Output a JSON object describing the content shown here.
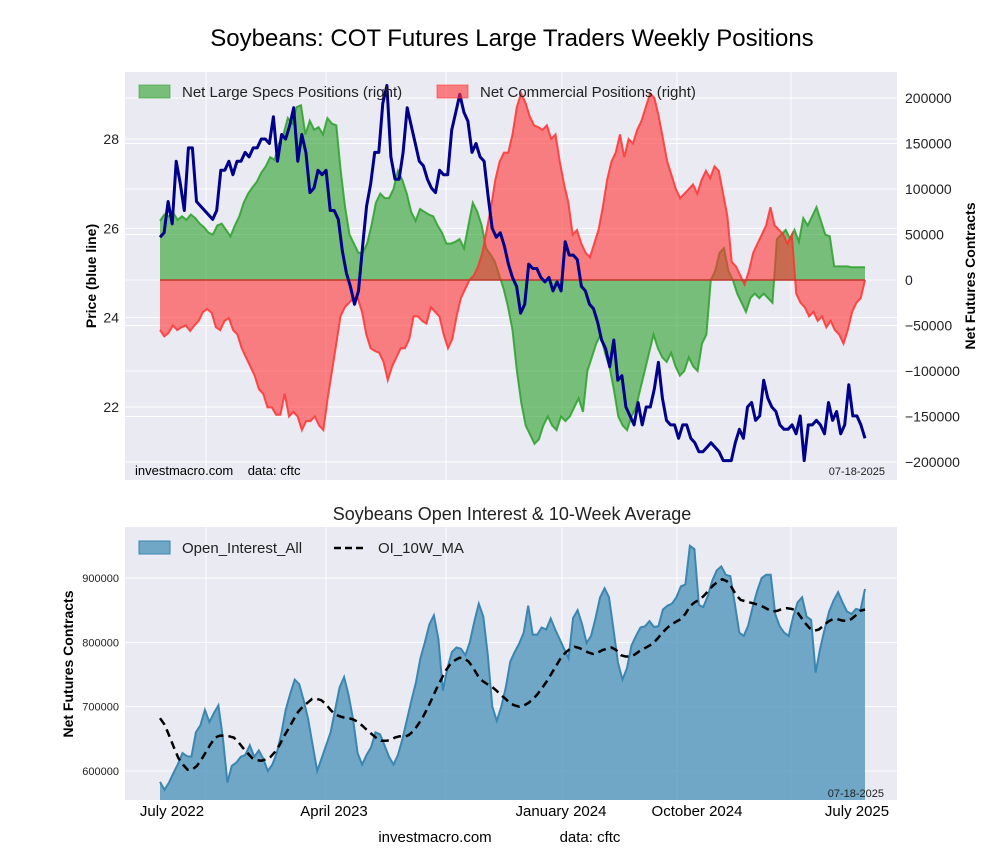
{
  "chart_data": [
    {
      "type": "area",
      "title": "Soybeans: COT Futures Large Traders Weekly Positions",
      "ylabel_left": "Price (blue line)",
      "ylabel_right": "Net Futures Contracts",
      "yticks_left": [
        "22",
        "24",
        "26",
        "28"
      ],
      "yticks_left_values": [
        22,
        24,
        26,
        28
      ],
      "yticks_right": [
        "200000",
        "150000",
        "100000",
        "50000",
        "0",
        "−50000",
        "−100000",
        "−150000",
        "−200000"
      ],
      "yticks_right_values": [
        200000,
        150000,
        100000,
        50000,
        0,
        -50000,
        -100000,
        -150000,
        -200000
      ],
      "ylim_left": [
        20.7,
        29.8
      ],
      "ylim_right": [
        -200000,
        200000
      ],
      "grid": true,
      "legend_position": "top-left",
      "legend": [
        "Net Large Specs Positions (right)",
        "Net Commercial Positions (right)"
      ],
      "watermark": "investmacro.com    data: cftc",
      "date_stamp": "07-18-2025",
      "colors": {
        "specs": "#2ca02c",
        "commercial": "#ff3333",
        "price": "#00008b",
        "background": "#eaeaf2"
      },
      "x_weeks": 157,
      "series": [
        {
          "name": "Net Large Specs Positions (right)",
          "values": [
            65000,
            72000,
            70000,
            74000,
            66000,
            70000,
            66000,
            72000,
            68000,
            62000,
            58000,
            52000,
            50000,
            60000,
            62000,
            55000,
            48000,
            60000,
            70000,
            85000,
            95000,
            102000,
            108000,
            118000,
            125000,
            135000,
            132000,
            150000,
            160000,
            178000,
            172000,
            190000,
            192000,
            160000,
            175000,
            165000,
            168000,
            160000,
            178000,
            172000,
            170000,
            120000,
            80000,
            50000,
            40000,
            30000,
            30000,
            40000,
            60000,
            85000,
            95000,
            90000,
            90000,
            100000,
            120000,
            110000,
            95000,
            75000,
            65000,
            78000,
            75000,
            72000,
            70000,
            60000,
            52000,
            40000,
            40000,
            42000,
            45000,
            35000,
            60000,
            85000,
            75000,
            60000,
            35000,
            28000,
            20000,
            5000,
            -10000,
            -30000,
            -55000,
            -100000,
            -135000,
            -160000,
            -170000,
            -180000,
            -175000,
            -160000,
            -150000,
            -160000,
            -165000,
            -150000,
            -155000,
            -150000,
            -140000,
            -130000,
            -145000,
            -100000,
            -85000,
            -70000,
            -60000,
            -80000,
            -95000,
            -120000,
            -150000,
            -160000,
            -165000,
            -150000,
            -140000,
            -120000,
            -100000,
            -80000,
            -60000,
            -75000,
            -85000,
            -90000,
            -80000,
            -95000,
            -105000,
            -100000,
            -85000,
            -95000,
            -100000,
            -70000,
            -60000,
            0,
            10000,
            30000,
            35000,
            10000,
            0,
            -15000,
            -25000,
            -35000,
            -20000,
            -15000,
            -20000,
            -15000,
            -20000,
            -25000,
            45000,
            50000,
            55000,
            45000,
            55000,
            42000,
            68000,
            60000,
            70000,
            80000,
            65000,
            50000,
            48000,
            15000,
            15000,
            15000,
            15000,
            14000,
            14000,
            14000,
            14000
          ],
          "color": "#2ca02c"
        },
        {
          "name": "Net Commercial Positions (right)",
          "values": [
            -55000,
            -62000,
            -58000,
            -50000,
            -55000,
            -52000,
            -50000,
            -56000,
            -50000,
            -45000,
            -35000,
            -32000,
            -36000,
            -52000,
            -55000,
            -45000,
            -42000,
            -55000,
            -60000,
            -75000,
            -85000,
            -95000,
            -105000,
            -120000,
            -125000,
            -140000,
            -140000,
            -148000,
            -148000,
            -125000,
            -150000,
            -145000,
            -150000,
            -165000,
            -155000,
            -155000,
            -150000,
            -160000,
            -165000,
            -130000,
            -100000,
            -70000,
            -40000,
            -30000,
            -25000,
            -20000,
            -20000,
            -35000,
            -60000,
            -75000,
            -78000,
            -80000,
            -90000,
            -110000,
            -95000,
            -85000,
            -75000,
            -75000,
            -65000,
            -40000,
            -40000,
            -45000,
            -48000,
            -30000,
            -35000,
            -40000,
            -60000,
            -75000,
            -65000,
            -40000,
            -20000,
            -10000,
            0,
            5000,
            15000,
            30000,
            55000,
            80000,
            110000,
            130000,
            140000,
            140000,
            160000,
            190000,
            205000,
            195000,
            180000,
            170000,
            168000,
            165000,
            170000,
            155000,
            160000,
            130000,
            105000,
            85000,
            50000,
            55000,
            40000,
            30000,
            25000,
            40000,
            55000,
            80000,
            110000,
            130000,
            140000,
            160000,
            135000,
            155000,
            150000,
            165000,
            175000,
            190000,
            205000,
            200000,
            180000,
            155000,
            130000,
            115000,
            100000,
            90000,
            95000,
            100000,
            105000,
            95000,
            110000,
            120000,
            112000,
            125000,
            120000,
            95000,
            70000,
            20000,
            15000,
            5000,
            -5000,
            10000,
            30000,
            40000,
            50000,
            60000,
            80000,
            60000,
            55000,
            50000,
            40000,
            50000,
            -15000,
            -25000,
            -30000,
            -40000,
            -35000,
            -45000,
            -40000,
            -52000,
            -45000,
            -55000,
            -60000,
            -70000,
            -55000,
            -35000,
            -25000,
            -20000,
            0
          ],
          "color": "#ff3333"
        },
        {
          "name": "Price (blue line)",
          "values": [
            25.8,
            25.9,
            26.6,
            26.1,
            27.5,
            27.0,
            26.4,
            27.8,
            27.8,
            26.6,
            26.5,
            26.4,
            26.3,
            26.2,
            26.4,
            27.3,
            27.3,
            27.5,
            27.2,
            27.5,
            27.5,
            27.7,
            27.6,
            27.8,
            27.8,
            28.0,
            28.0,
            27.9,
            28.5,
            27.5,
            28.1,
            28.0,
            28.3,
            28.7,
            27.5,
            28.1,
            27.7,
            26.8,
            26.9,
            27.3,
            27.2,
            27.3,
            26.4,
            26.4,
            26.2,
            25.5,
            25.0,
            24.7,
            24.3,
            24.6,
            25.6,
            26.5,
            27.0,
            27.7,
            27.7,
            28.8,
            29.2,
            27.6,
            27.1,
            27.1,
            27.7,
            28.7,
            28.3,
            27.9,
            27.5,
            27.4,
            27.1,
            26.9,
            26.8,
            27.3,
            27.2,
            27.2,
            28.2,
            28.6,
            29.0,
            28.6,
            28.4,
            27.7,
            27.9,
            27.6,
            27.5,
            26.7,
            26.0,
            25.8,
            25.9,
            25.6,
            25.2,
            24.9,
            24.7,
            24.1,
            24.3,
            25.2,
            25.1,
            25.1,
            24.9,
            24.8,
            24.9,
            24.6,
            24.8,
            24.6,
            25.7,
            25.4,
            25.4,
            25.3,
            24.7,
            24.6,
            24.3,
            24.2,
            23.9,
            23.5,
            23.3,
            22.9,
            23.5,
            22.6,
            22.7,
            22.0,
            21.8,
            21.6,
            22.1,
            21.6,
            22.0,
            22.0,
            22.4,
            23.0,
            22.2,
            21.7,
            21.6,
            21.6,
            21.3,
            21.6,
            21.6,
            21.3,
            21.2,
            21.0,
            21.0,
            21.1,
            21.2,
            21.1,
            21.0,
            20.8,
            20.8,
            20.8,
            21.2,
            21.5,
            21.3,
            22.0,
            22.1,
            21.7,
            21.8,
            22.6,
            22.2,
            22.0,
            21.9,
            21.6,
            21.5,
            21.5,
            21.6,
            21.4,
            21.8,
            20.8,
            21.6,
            21.6,
            21.7,
            21.6,
            21.4,
            22.1,
            21.7,
            21.9,
            21.4,
            21.6,
            22.5,
            21.8,
            21.8,
            21.6,
            21.3
          ],
          "color": "#00008b"
        }
      ]
    },
    {
      "type": "area",
      "title": "Soybeans Open Interest & 10-Week Average",
      "ylabel": "Net Futures Contracts",
      "yticks": [
        "600000",
        "700000",
        "800000",
        "900000"
      ],
      "yticks_values": [
        600000,
        700000,
        800000,
        900000
      ],
      "ylim": [
        556000,
        975000
      ],
      "xticks": [
        "July 2022",
        "April 2023",
        "January 2024",
        "October 2024",
        "July 2025"
      ],
      "grid": true,
      "legend_position": "top-left",
      "legend": [
        "Open_Interest_All",
        "OI_10W_MA"
      ],
      "date_stamp": "07-18-2025",
      "colors": {
        "open_interest": "#5b9bbf",
        "open_interest_line": "#3a86b0",
        "ma": "#000000",
        "background": "#eaeaf2"
      },
      "series": [
        {
          "name": "Open_Interest_All",
          "values": [
            583000,
            571000,
            582000,
            597000,
            611000,
            628000,
            623000,
            622000,
            660000,
            671000,
            695000,
            676000,
            690000,
            702000,
            651000,
            582000,
            608000,
            613000,
            622000,
            625000,
            640000,
            622000,
            632000,
            619000,
            600000,
            610000,
            628000,
            657000,
            695000,
            720000,
            742000,
            735000,
            710000,
            680000,
            640000,
            600000,
            620000,
            640000,
            660000,
            695000,
            730000,
            746000,
            718000,
            680000,
            628000,
            610000,
            625000,
            637000,
            660000,
            657000,
            640000,
            622000,
            610000,
            625000,
            650000,
            680000,
            710000,
            738000,
            775000,
            800000,
            828000,
            842000,
            805000,
            725000,
            760000,
            785000,
            792000,
            790000,
            780000,
            800000,
            832000,
            860000,
            840000,
            780000,
            700000,
            678000,
            700000,
            730000,
            770000,
            785000,
            798000,
            815000,
            857000,
            812000,
            812000,
            823000,
            820000,
            837000,
            820000,
            805000,
            790000,
            775000,
            838000,
            850000,
            828000,
            799000,
            810000,
            838000,
            870000,
            884000,
            870000,
            820000,
            768000,
            742000,
            760000,
            795000,
            810000,
            823000,
            825000,
            833000,
            824000,
            825000,
            851000,
            857000,
            860000,
            870000,
            887000,
            890000,
            950000,
            945000,
            858000,
            855000,
            872000,
            896000,
            912000,
            918000,
            905000,
            903000,
            860000,
            815000,
            810000,
            826000,
            855000,
            880000,
            900000,
            905000,
            905000,
            844000,
            825000,
            815000,
            810000,
            840000,
            862000,
            870000,
            840000,
            835000,
            753000,
            790000,
            820000,
            848000,
            865000,
            878000,
            862000,
            848000,
            844000,
            852000,
            850000,
            883000
          ],
          "color": "#5b9bbf"
        },
        {
          "name": "OI_10W_MA",
          "values": [
            682000,
            672000,
            655000,
            637000,
            620000,
            610000,
            602000,
            602000,
            608000,
            618000,
            630000,
            642000,
            652000,
            655000,
            655000,
            654000,
            652000,
            645000,
            636000,
            628000,
            620000,
            617000,
            616000,
            618000,
            622000,
            630000,
            641000,
            655000,
            667000,
            680000,
            692000,
            700000,
            706000,
            712000,
            712000,
            710000,
            704000,
            695000,
            688000,
            685000,
            683000,
            682000,
            680000,
            676000,
            670000,
            663000,
            657000,
            651000,
            647000,
            647000,
            648000,
            652000,
            654000,
            653000,
            656000,
            662000,
            672000,
            683000,
            697000,
            712000,
            728000,
            742000,
            756000,
            766000,
            772000,
            776000,
            775000,
            770000,
            760000,
            748000,
            740000,
            735000,
            731000,
            725000,
            718000,
            712000,
            705000,
            702000,
            700000,
            702000,
            706000,
            712000,
            720000,
            730000,
            740000,
            752000,
            764000,
            776000,
            784000,
            790000,
            793000,
            791000,
            788000,
            784000,
            782000,
            784000,
            788000,
            790000,
            792000,
            788000,
            780000,
            778000,
            778000,
            781000,
            786000,
            790000,
            794000,
            798000,
            806000,
            815000,
            822000,
            828000,
            832000,
            836000,
            844000,
            856000,
            862000,
            866000,
            872000,
            880000,
            888000,
            894000,
            898000,
            895000,
            886000,
            874000,
            866000,
            864000,
            862000,
            860000,
            858000,
            855000,
            851000,
            848000,
            849000,
            852000,
            853000,
            852000,
            850000,
            840000,
            830000,
            822000,
            818000,
            820000,
            826000,
            832000,
            836000,
            836000,
            834000,
            833000,
            836000,
            842000,
            849000,
            851000
          ],
          "color": "#000000"
        }
      ]
    }
  ],
  "footer": {
    "site": "investmacro.com",
    "source": "data: cftc"
  }
}
